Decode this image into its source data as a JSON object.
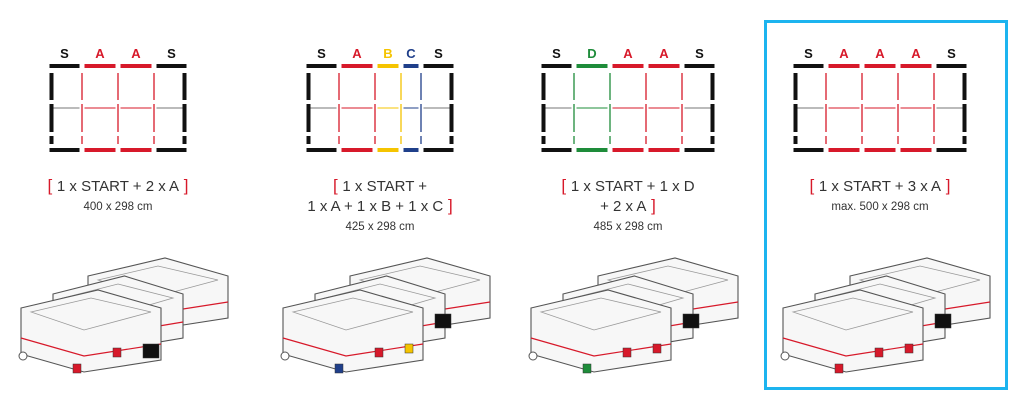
{
  "highlight_color": "#1cb4ef",
  "configurations": [
    {
      "segments": [
        {
          "label": "S",
          "color": "#111111"
        },
        {
          "label": "A",
          "color": "#d7192a"
        },
        {
          "label": "A",
          "color": "#d7192a"
        },
        {
          "label": "S",
          "color": "#111111"
        }
      ],
      "bracket_open": "[",
      "formula_lines": [
        "1 x START  +  2 x A"
      ],
      "bracket_close": "]",
      "dimensions": "400 x 298 cm",
      "highlighted": false,
      "case_markers": [
        "#d7192a",
        "#d7192a",
        "#111111"
      ]
    },
    {
      "segments": [
        {
          "label": "S",
          "color": "#111111"
        },
        {
          "label": "A",
          "color": "#d7192a"
        },
        {
          "label": "B",
          "color": "#f5c400"
        },
        {
          "label": "C",
          "color": "#1f3f8a"
        },
        {
          "label": "S",
          "color": "#111111"
        }
      ],
      "bracket_open": "[",
      "formula_lines": [
        "1 x START  +",
        "1 x A + 1 x B + 1 x C"
      ],
      "bracket_close": "]",
      "dimensions": "425 x 298 cm",
      "highlighted": false,
      "case_markers": [
        "#1f3f8a",
        "#d7192a",
        "#f5c400",
        "#111111"
      ]
    },
    {
      "segments": [
        {
          "label": "S",
          "color": "#111111"
        },
        {
          "label": "D",
          "color": "#1e8c3a"
        },
        {
          "label": "A",
          "color": "#d7192a"
        },
        {
          "label": "A",
          "color": "#d7192a"
        },
        {
          "label": "S",
          "color": "#111111"
        }
      ],
      "bracket_open": "[",
      "formula_lines": [
        "1 x START  +  1 x D",
        "+ 2 x A"
      ],
      "bracket_close": "]",
      "dimensions": "485 x 298 cm",
      "highlighted": false,
      "case_markers": [
        "#1e8c3a",
        "#d7192a",
        "#d7192a",
        "#111111"
      ]
    },
    {
      "segments": [
        {
          "label": "S",
          "color": "#111111"
        },
        {
          "label": "A",
          "color": "#d7192a"
        },
        {
          "label": "A",
          "color": "#d7192a"
        },
        {
          "label": "A",
          "color": "#d7192a"
        },
        {
          "label": "S",
          "color": "#111111"
        }
      ],
      "bracket_open": "[",
      "formula_lines": [
        "1 x START  +  3 x A"
      ],
      "bracket_close": "]",
      "dimensions": "max. 500 x 298 cm",
      "highlighted": true,
      "case_markers": [
        "#d7192a",
        "#d7192a",
        "#d7192a",
        "#111111"
      ]
    }
  ]
}
